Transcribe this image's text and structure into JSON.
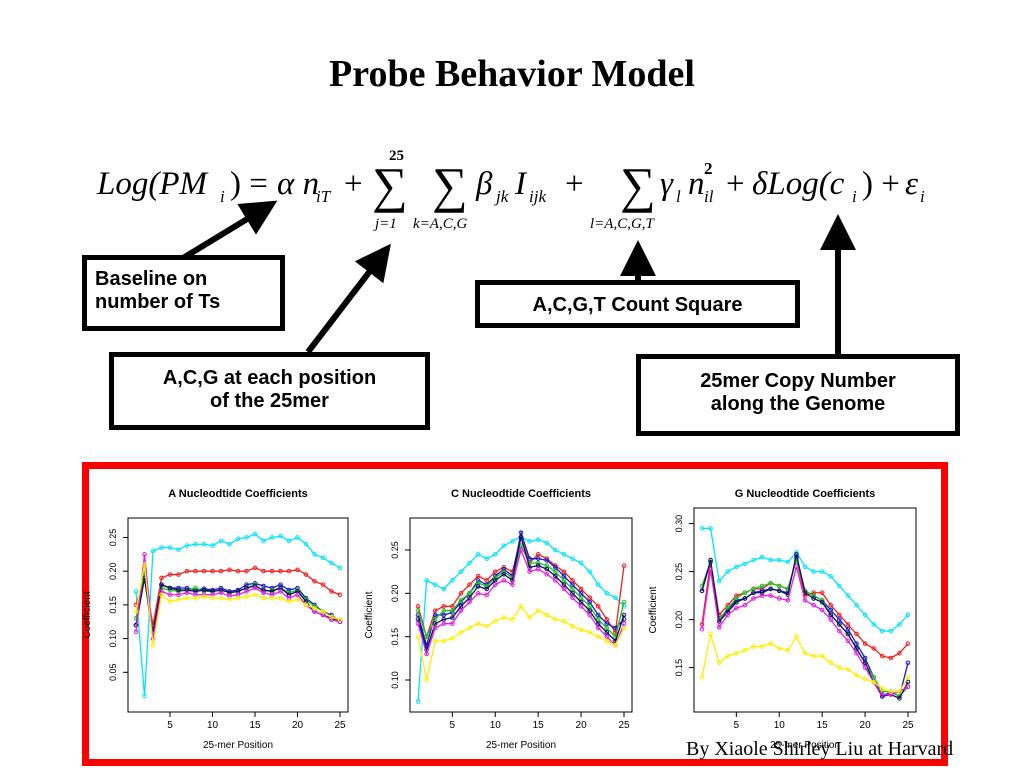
{
  "slide": {
    "title": "Probe Behavior Model",
    "credit": "By Xiaole Shirley Liu at Harvard"
  },
  "equation": {
    "lhs_log": "Log(PM",
    "lhs_sub": "i",
    "alpha_term": "α n",
    "alpha_sub": "iT",
    "sum1_top": "25",
    "sum1_bottom": "j=1",
    "sum2_bottom": "k=A,C,G",
    "beta_term": "β",
    "beta_sub": "jk",
    "i_term": "I",
    "i_sub": "ijk",
    "sum3_bottom": "l=A,C,G,T",
    "gamma_term": "γ",
    "gamma_sub": "l",
    "n2_term": "n",
    "n2_sub": "il",
    "n2_sup": "2",
    "delta_term": "δLog(c",
    "delta_sub": "i",
    "eps_term": "ε",
    "eps_sub": "i"
  },
  "annotations": {
    "baseline_line1": "Baseline on",
    "baseline_line2": "number of Ts",
    "acg_line1": "A,C,G at each position",
    "acg_line2": "of the 25mer",
    "count_square": "A,C,G,T Count Square",
    "copy_line1": "25mer Copy Number",
    "copy_line2": "along the Genome"
  },
  "colors": {
    "frame": "#ff0000",
    "cyan": "#00e5ff",
    "red": "#ee2020",
    "blue": "#1a1ad0",
    "green": "#20c020",
    "navy": "#101060",
    "magenta": "#e020e0",
    "yellow": "#ffee00"
  },
  "chart_data": [
    {
      "type": "line",
      "title": "A Nucleodtide Coefficients",
      "xlabel": "25-mer Position",
      "ylabel": "Coefficient",
      "xlim": [
        1,
        25
      ],
      "ylim": [
        0,
        0.27
      ],
      "xticks": [
        5,
        10,
        15,
        20,
        25
      ],
      "yticks": [
        0.05,
        0.1,
        0.15,
        0.2,
        0.25
      ],
      "x": [
        1,
        2,
        3,
        4,
        5,
        6,
        7,
        8,
        9,
        10,
        11,
        12,
        13,
        14,
        15,
        16,
        17,
        18,
        19,
        20,
        21,
        22,
        23,
        24,
        25
      ],
      "series": [
        {
          "color": "cyan",
          "values": [
            0.17,
            0.015,
            0.23,
            0.235,
            0.235,
            0.232,
            0.238,
            0.24,
            0.24,
            0.238,
            0.245,
            0.24,
            0.248,
            0.25,
            0.255,
            0.245,
            0.25,
            0.252,
            0.245,
            0.25,
            0.24,
            0.225,
            0.22,
            0.212,
            0.205
          ]
        },
        {
          "color": "red",
          "values": [
            0.15,
            0.19,
            0.12,
            0.19,
            0.195,
            0.195,
            0.2,
            0.2,
            0.2,
            0.2,
            0.2,
            0.202,
            0.2,
            0.2,
            0.205,
            0.2,
            0.2,
            0.2,
            0.2,
            0.202,
            0.195,
            0.185,
            0.18,
            0.17,
            0.165
          ]
        },
        {
          "color": "blue",
          "values": [
            0.12,
            0.19,
            0.1,
            0.18,
            0.175,
            0.175,
            0.175,
            0.172,
            0.174,
            0.172,
            0.175,
            0.17,
            0.172,
            0.18,
            0.182,
            0.178,
            0.175,
            0.18,
            0.172,
            0.175,
            0.16,
            0.15,
            0.14,
            0.135,
            0.125
          ]
        },
        {
          "color": "green",
          "values": [
            0.13,
            0.2,
            0.11,
            0.175,
            0.172,
            0.17,
            0.172,
            0.175,
            0.17,
            0.17,
            0.172,
            0.168,
            0.17,
            0.175,
            0.18,
            0.17,
            0.172,
            0.175,
            0.168,
            0.172,
            0.158,
            0.148,
            0.14,
            0.132,
            0.128
          ]
        },
        {
          "color": "navy",
          "values": [
            0.12,
            0.19,
            0.11,
            0.18,
            0.175,
            0.172,
            0.172,
            0.17,
            0.172,
            0.17,
            0.172,
            0.168,
            0.17,
            0.175,
            0.178,
            0.172,
            0.17,
            0.175,
            0.165,
            0.17,
            0.155,
            0.14,
            0.135,
            0.13,
            0.125
          ]
        },
        {
          "color": "magenta",
          "values": [
            0.11,
            0.225,
            0.1,
            0.17,
            0.165,
            0.165,
            0.168,
            0.165,
            0.165,
            0.165,
            0.168,
            0.163,
            0.165,
            0.17,
            0.175,
            0.168,
            0.165,
            0.17,
            0.16,
            0.165,
            0.15,
            0.14,
            0.135,
            0.128,
            0.125
          ]
        },
        {
          "color": "yellow",
          "values": [
            0.14,
            0.21,
            0.09,
            0.165,
            0.155,
            0.158,
            0.16,
            0.16,
            0.162,
            0.16,
            0.16,
            0.158,
            0.16,
            0.162,
            0.165,
            0.16,
            0.16,
            0.16,
            0.155,
            0.158,
            0.15,
            0.145,
            0.14,
            0.132,
            0.128
          ]
        }
      ]
    },
    {
      "type": "line",
      "title": "C Nucleodtide Coefficients",
      "xlabel": "25-mer Position",
      "ylabel": "Coefficient",
      "xlim": [
        1,
        25
      ],
      "ylim": [
        0.07,
        0.28
      ],
      "xticks": [
        5,
        10,
        15,
        20,
        25
      ],
      "yticks": [
        0.1,
        0.15,
        0.2,
        0.25
      ],
      "x": [
        1,
        2,
        3,
        4,
        5,
        6,
        7,
        8,
        9,
        10,
        11,
        12,
        13,
        14,
        15,
        16,
        17,
        18,
        19,
        20,
        21,
        22,
        23,
        24,
        25
      ],
      "series": [
        {
          "color": "cyan",
          "values": [
            0.075,
            0.215,
            0.21,
            0.205,
            0.215,
            0.225,
            0.235,
            0.245,
            0.24,
            0.245,
            0.255,
            0.26,
            0.265,
            0.26,
            0.262,
            0.258,
            0.25,
            0.245,
            0.24,
            0.235,
            0.225,
            0.21,
            0.2,
            0.195,
            0.185
          ]
        },
        {
          "color": "red",
          "values": [
            0.185,
            0.15,
            0.18,
            0.185,
            0.185,
            0.2,
            0.21,
            0.22,
            0.215,
            0.225,
            0.23,
            0.225,
            0.265,
            0.235,
            0.245,
            0.24,
            0.232,
            0.225,
            0.215,
            0.205,
            0.195,
            0.185,
            0.17,
            0.155,
            0.232
          ]
        },
        {
          "color": "blue",
          "values": [
            0.175,
            0.14,
            0.175,
            0.175,
            0.178,
            0.19,
            0.2,
            0.215,
            0.21,
            0.22,
            0.228,
            0.22,
            0.27,
            0.24,
            0.24,
            0.238,
            0.23,
            0.22,
            0.21,
            0.2,
            0.19,
            0.175,
            0.165,
            0.16,
            0.17
          ]
        },
        {
          "color": "green",
          "values": [
            0.18,
            0.15,
            0.17,
            0.18,
            0.18,
            0.192,
            0.2,
            0.212,
            0.208,
            0.218,
            0.225,
            0.218,
            0.255,
            0.235,
            0.235,
            0.232,
            0.225,
            0.215,
            0.205,
            0.195,
            0.185,
            0.17,
            0.16,
            0.15,
            0.19
          ]
        },
        {
          "color": "navy",
          "values": [
            0.17,
            0.135,
            0.165,
            0.17,
            0.172,
            0.185,
            0.195,
            0.208,
            0.205,
            0.215,
            0.222,
            0.215,
            0.265,
            0.23,
            0.232,
            0.228,
            0.22,
            0.21,
            0.2,
            0.19,
            0.18,
            0.165,
            0.155,
            0.145,
            0.175
          ]
        },
        {
          "color": "magenta",
          "values": [
            0.165,
            0.13,
            0.16,
            0.165,
            0.165,
            0.18,
            0.19,
            0.2,
            0.198,
            0.21,
            0.215,
            0.21,
            0.25,
            0.225,
            0.228,
            0.222,
            0.215,
            0.205,
            0.195,
            0.185,
            0.175,
            0.16,
            0.15,
            0.14,
            0.165
          ]
        },
        {
          "color": "yellow",
          "values": [
            0.15,
            0.1,
            0.145,
            0.145,
            0.148,
            0.155,
            0.16,
            0.165,
            0.162,
            0.168,
            0.172,
            0.17,
            0.185,
            0.172,
            0.18,
            0.175,
            0.17,
            0.168,
            0.162,
            0.158,
            0.155,
            0.15,
            0.145,
            0.14,
            0.16
          ]
        }
      ]
    },
    {
      "type": "line",
      "title": "G Nucleodtide Coefficients",
      "xlabel": "25-mer Position",
      "ylabel": "Coefficient",
      "xlim": [
        1,
        25
      ],
      "ylim": [
        0.11,
        0.31
      ],
      "xticks": [
        5,
        10,
        15,
        20,
        25
      ],
      "yticks": [
        0.15,
        0.2,
        0.25,
        0.3
      ],
      "x": [
        1,
        2,
        3,
        4,
        5,
        6,
        7,
        8,
        9,
        10,
        11,
        12,
        13,
        14,
        15,
        16,
        17,
        18,
        19,
        20,
        21,
        22,
        23,
        24,
        25
      ],
      "series": [
        {
          "color": "cyan",
          "values": [
            0.295,
            0.295,
            0.24,
            0.25,
            0.255,
            0.258,
            0.262,
            0.265,
            0.262,
            0.262,
            0.26,
            0.27,
            0.255,
            0.25,
            0.25,
            0.245,
            0.235,
            0.225,
            0.215,
            0.205,
            0.195,
            0.188,
            0.188,
            0.195,
            0.205
          ]
        },
        {
          "color": "red",
          "values": [
            0.195,
            0.26,
            0.205,
            0.215,
            0.225,
            0.228,
            0.232,
            0.232,
            0.238,
            0.235,
            0.232,
            0.262,
            0.225,
            0.228,
            0.228,
            0.215,
            0.205,
            0.195,
            0.185,
            0.175,
            0.17,
            0.162,
            0.16,
            0.165,
            0.175
          ]
        },
        {
          "color": "blue",
          "values": [
            0.23,
            0.26,
            0.2,
            0.21,
            0.22,
            0.222,
            0.228,
            0.23,
            0.232,
            0.23,
            0.228,
            0.265,
            0.23,
            0.225,
            0.22,
            0.21,
            0.2,
            0.19,
            0.175,
            0.16,
            0.14,
            0.12,
            0.125,
            0.12,
            0.155
          ]
        },
        {
          "color": "green",
          "values": [
            0.235,
            0.26,
            0.2,
            0.212,
            0.222,
            0.228,
            0.232,
            0.235,
            0.238,
            0.235,
            0.232,
            0.262,
            0.23,
            0.225,
            0.22,
            0.205,
            0.195,
            0.185,
            0.17,
            0.155,
            0.14,
            0.125,
            0.125,
            0.12,
            0.13
          ]
        },
        {
          "color": "navy",
          "values": [
            0.23,
            0.262,
            0.198,
            0.208,
            0.218,
            0.222,
            0.228,
            0.228,
            0.232,
            0.23,
            0.226,
            0.268,
            0.228,
            0.222,
            0.218,
            0.205,
            0.195,
            0.185,
            0.17,
            0.155,
            0.135,
            0.12,
            0.122,
            0.118,
            0.135
          ]
        },
        {
          "color": "magenta",
          "values": [
            0.19,
            0.252,
            0.192,
            0.205,
            0.212,
            0.215,
            0.222,
            0.225,
            0.225,
            0.222,
            0.22,
            0.255,
            0.22,
            0.215,
            0.21,
            0.2,
            0.188,
            0.178,
            0.165,
            0.15,
            0.135,
            0.122,
            0.122,
            0.125,
            0.13
          ]
        },
        {
          "color": "yellow",
          "values": [
            0.14,
            0.185,
            0.155,
            0.162,
            0.165,
            0.168,
            0.172,
            0.172,
            0.175,
            0.17,
            0.168,
            0.182,
            0.165,
            0.162,
            0.162,
            0.155,
            0.15,
            0.148,
            0.142,
            0.138,
            0.135,
            0.128,
            0.125,
            0.125,
            0.14
          ]
        }
      ]
    }
  ]
}
